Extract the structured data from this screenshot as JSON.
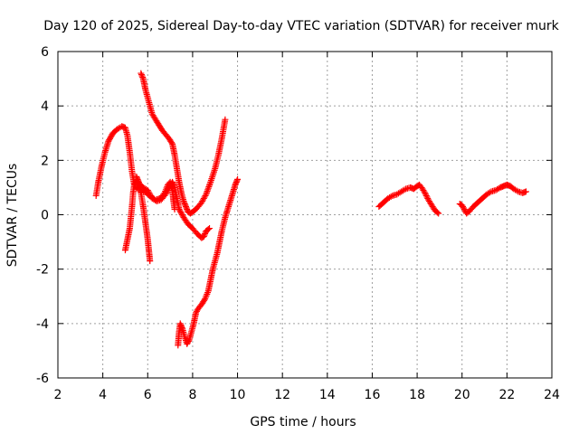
{
  "chart_data": {
    "type": "scatter",
    "title": "Day 120 of 2025, Sidereal Day-to-day VTEC variation (SDTVAR) for receiver murk",
    "xlabel": "GPS time / hours",
    "ylabel": "SDTVAR / TECUs",
    "xlim": [
      2,
      24
    ],
    "ylim": [
      -6,
      6
    ],
    "xticks": [
      2,
      4,
      6,
      8,
      10,
      12,
      14,
      16,
      18,
      20,
      22,
      24
    ],
    "yticks": [
      -6,
      -4,
      -2,
      0,
      2,
      4,
      6
    ],
    "xtick_labels": [
      "2",
      "4",
      "6",
      "8",
      "10",
      "12",
      "14",
      "16",
      "18",
      "20",
      "22",
      "24"
    ],
    "ytick_labels": [
      "-6",
      "-4",
      "-2",
      "0",
      "2",
      "4",
      "6"
    ],
    "grid": true,
    "marker": "+",
    "series": [
      {
        "color": "#ff0000",
        "tracks": [
          [
            [
              3.7,
              0.7
            ],
            [
              3.8,
              1.2
            ],
            [
              3.95,
              1.8
            ],
            [
              4.1,
              2.3
            ],
            [
              4.25,
              2.7
            ],
            [
              4.45,
              3.0
            ],
            [
              4.65,
              3.15
            ],
            [
              4.85,
              3.25
            ],
            [
              5.0,
              3.2
            ],
            [
              5.1,
              2.9
            ],
            [
              5.2,
              2.3
            ],
            [
              5.3,
              1.6
            ],
            [
              5.4,
              1.1
            ],
            [
              5.55,
              0.95
            ],
            [
              5.75,
              0.9
            ],
            [
              5.95,
              0.8
            ],
            [
              6.15,
              0.65
            ],
            [
              6.35,
              0.55
            ],
            [
              6.55,
              0.6
            ],
            [
              6.75,
              0.8
            ],
            [
              6.9,
              1.1
            ],
            [
              7.0,
              1.2
            ],
            [
              7.1,
              0.9
            ],
            [
              7.15,
              0.5
            ],
            [
              7.2,
              0.2
            ]
          ],
          [
            [
              5.7,
              5.2
            ],
            [
              5.8,
              5.0
            ],
            [
              5.9,
              4.6
            ],
            [
              6.0,
              4.3
            ],
            [
              6.1,
              4.0
            ],
            [
              6.2,
              3.7
            ],
            [
              6.35,
              3.5
            ],
            [
              6.5,
              3.3
            ],
            [
              6.65,
              3.1
            ],
            [
              6.8,
              2.95
            ],
            [
              6.95,
              2.8
            ],
            [
              7.1,
              2.6
            ],
            [
              7.2,
              2.2
            ],
            [
              7.3,
              1.7
            ],
            [
              7.4,
              1.2
            ],
            [
              7.5,
              0.8
            ],
            [
              7.6,
              0.5
            ],
            [
              7.7,
              0.3
            ],
            [
              7.8,
              0.1
            ],
            [
              7.9,
              0.05
            ],
            [
              8.0,
              0.1
            ],
            [
              8.2,
              0.25
            ],
            [
              8.4,
              0.45
            ],
            [
              8.6,
              0.75
            ],
            [
              8.8,
              1.2
            ],
            [
              9.0,
              1.7
            ],
            [
              9.15,
              2.2
            ],
            [
              9.3,
              2.8
            ],
            [
              9.45,
              3.5
            ]
          ],
          [
            [
              5.5,
              1.4
            ],
            [
              5.6,
              1.2
            ],
            [
              5.7,
              0.8
            ],
            [
              5.8,
              0.3
            ],
            [
              5.9,
              -0.3
            ],
            [
              6.0,
              -0.9
            ],
            [
              6.05,
              -1.3
            ],
            [
              6.1,
              -1.7
            ]
          ],
          [
            [
              5.0,
              -1.3
            ],
            [
              5.1,
              -0.9
            ],
            [
              5.2,
              -0.5
            ],
            [
              5.3,
              0.3
            ],
            [
              5.35,
              0.8
            ],
            [
              5.4,
              1.1
            ],
            [
              5.5,
              1.25
            ],
            [
              5.6,
              1.15
            ],
            [
              5.8,
              1.0
            ],
            [
              6.0,
              0.9
            ],
            [
              6.2,
              0.6
            ],
            [
              6.4,
              0.5
            ],
            [
              6.6,
              0.55
            ],
            [
              6.8,
              0.75
            ],
            [
              7.0,
              1.05
            ],
            [
              7.1,
              1.2
            ],
            [
              7.2,
              1.0
            ],
            [
              7.3,
              0.6
            ],
            [
              7.4,
              0.2
            ],
            [
              7.6,
              -0.1
            ],
            [
              7.8,
              -0.35
            ],
            [
              8.0,
              -0.5
            ],
            [
              8.2,
              -0.7
            ],
            [
              8.4,
              -0.85
            ],
            [
              8.5,
              -0.8
            ],
            [
              8.6,
              -0.6
            ],
            [
              8.75,
              -0.5
            ]
          ],
          [
            [
              7.35,
              -4.8
            ],
            [
              7.4,
              -4.3
            ],
            [
              7.45,
              -4.0
            ],
            [
              7.55,
              -4.2
            ],
            [
              7.65,
              -4.5
            ],
            [
              7.75,
              -4.75
            ],
            [
              7.85,
              -4.6
            ],
            [
              7.95,
              -4.3
            ],
            [
              8.05,
              -4.0
            ],
            [
              8.15,
              -3.6
            ],
            [
              8.25,
              -3.45
            ],
            [
              8.4,
              -3.3
            ],
            [
              8.55,
              -3.1
            ],
            [
              8.7,
              -2.8
            ],
            [
              8.8,
              -2.4
            ],
            [
              8.9,
              -2.0
            ],
            [
              9.0,
              -1.7
            ],
            [
              9.1,
              -1.4
            ],
            [
              9.2,
              -1.0
            ],
            [
              9.3,
              -0.6
            ],
            [
              9.45,
              -0.1
            ],
            [
              9.6,
              0.3
            ],
            [
              9.75,
              0.7
            ],
            [
              9.9,
              1.1
            ],
            [
              10.0,
              1.3
            ]
          ],
          [
            [
              16.3,
              0.3
            ],
            [
              16.5,
              0.45
            ],
            [
              16.7,
              0.6
            ],
            [
              16.9,
              0.7
            ],
            [
              17.1,
              0.75
            ],
            [
              17.3,
              0.85
            ],
            [
              17.5,
              0.95
            ],
            [
              17.7,
              1.0
            ],
            [
              17.85,
              0.95
            ],
            [
              18.0,
              1.05
            ],
            [
              18.1,
              1.1
            ],
            [
              18.2,
              1.0
            ],
            [
              18.35,
              0.8
            ],
            [
              18.5,
              0.55
            ],
            [
              18.65,
              0.35
            ],
            [
              18.8,
              0.15
            ],
            [
              18.95,
              0.05
            ]
          ],
          [
            [
              19.9,
              0.4
            ],
            [
              20.0,
              0.35
            ],
            [
              20.1,
              0.2
            ],
            [
              20.2,
              0.05
            ],
            [
              20.35,
              0.15
            ],
            [
              20.5,
              0.3
            ],
            [
              20.7,
              0.45
            ],
            [
              20.9,
              0.6
            ],
            [
              21.1,
              0.75
            ],
            [
              21.3,
              0.85
            ],
            [
              21.5,
              0.9
            ],
            [
              21.7,
              1.0
            ],
            [
              21.85,
              1.05
            ],
            [
              22.0,
              1.1
            ],
            [
              22.15,
              1.05
            ],
            [
              22.3,
              0.95
            ],
            [
              22.5,
              0.85
            ],
            [
              22.7,
              0.8
            ],
            [
              22.85,
              0.85
            ]
          ]
        ]
      }
    ]
  }
}
